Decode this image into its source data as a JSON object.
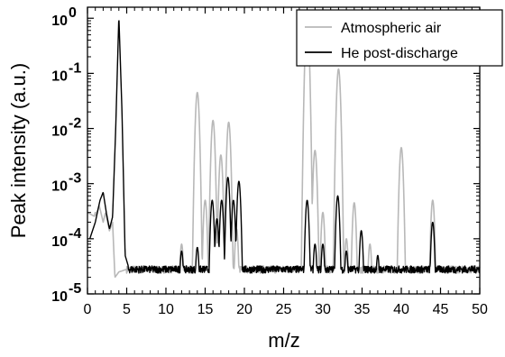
{
  "chart_data": {
    "type": "line",
    "title": "",
    "xlabel": "m/z",
    "ylabel": "Peak intensity (a.u.)",
    "xlim": [
      0,
      50
    ],
    "ylim": [
      1e-05,
      2
    ],
    "y_scale": "log",
    "x_ticks": [
      0,
      5,
      10,
      15,
      20,
      25,
      30,
      35,
      40,
      45,
      50
    ],
    "y_ticks": [
      {
        "value": 1e-05,
        "exp": "-5"
      },
      {
        "value": 0.0001,
        "exp": "-4"
      },
      {
        "value": 0.001,
        "exp": "-3"
      },
      {
        "value": 0.01,
        "exp": "-2"
      },
      {
        "value": 0.1,
        "exp": "-1"
      },
      {
        "value": 1,
        "exp": "0"
      }
    ],
    "y_tick_base": "10",
    "grid": false,
    "legend_position": "top-right",
    "background": 2.8e-05,
    "series": [
      {
        "name": "Atmospheric air",
        "color": "#b8b8b8",
        "baseline_x": [
          0,
          1,
          1.5,
          2,
          2.3,
          2.8,
          3.2,
          3.5,
          4,
          5
        ],
        "baseline_y": [
          0.0003,
          0.00025,
          0.0004,
          0.0002,
          0.0003,
          0.00014,
          0.0002,
          2e-05,
          2.5e-05,
          2.8e-05
        ],
        "peaks": [
          {
            "x": 1.0,
            "y": 0.0003
          },
          {
            "x": 12,
            "y": 8e-05
          },
          {
            "x": 14,
            "y": 0.045
          },
          {
            "x": 15,
            "y": 0.0005
          },
          {
            "x": 16,
            "y": 0.014
          },
          {
            "x": 17,
            "y": 0.0033
          },
          {
            "x": 18,
            "y": 0.013
          },
          {
            "x": 19,
            "y": 0.00015
          },
          {
            "x": 28,
            "y": 1.0
          },
          {
            "x": 29,
            "y": 0.004
          },
          {
            "x": 30,
            "y": 0.0003
          },
          {
            "x": 32,
            "y": 0.12
          },
          {
            "x": 33,
            "y": 0.0001
          },
          {
            "x": 34,
            "y": 0.00045
          },
          {
            "x": 36,
            "y": 8e-05
          },
          {
            "x": 40,
            "y": 0.0045
          },
          {
            "x": 44,
            "y": 0.0005
          }
        ]
      },
      {
        "name": "He post-discharge",
        "color": "#000000",
        "baseline_x": [
          0.3,
          1,
          1.6,
          2,
          2.4,
          2.8,
          3.2,
          3.6,
          4.0,
          4.4,
          4.8,
          5.2
        ],
        "baseline_y": [
          0.0001,
          0.0002,
          0.0005,
          0.0007,
          0.0003,
          0.00015,
          0.00025,
          0.01,
          1.1,
          0.02,
          5e-05,
          3.2e-05
        ],
        "peaks": [
          {
            "x": 12,
            "y": 6e-05
          },
          {
            "x": 14,
            "y": 7e-05
          },
          {
            "x": 15.9,
            "y": 0.0005
          },
          {
            "x": 16.5,
            "y": 0.00023
          },
          {
            "x": 17.1,
            "y": 0.0005
          },
          {
            "x": 17.9,
            "y": 0.0013
          },
          {
            "x": 18.6,
            "y": 0.0005
          },
          {
            "x": 19.3,
            "y": 0.0011
          },
          {
            "x": 28,
            "y": 0.0005
          },
          {
            "x": 29,
            "y": 8e-05
          },
          {
            "x": 30,
            "y": 8e-05
          },
          {
            "x": 31.9,
            "y": 0.0006
          },
          {
            "x": 33,
            "y": 6e-05
          },
          {
            "x": 34.9,
            "y": 0.00014
          },
          {
            "x": 37,
            "y": 5e-05
          },
          {
            "x": 44,
            "y": 0.0002
          }
        ]
      }
    ]
  }
}
